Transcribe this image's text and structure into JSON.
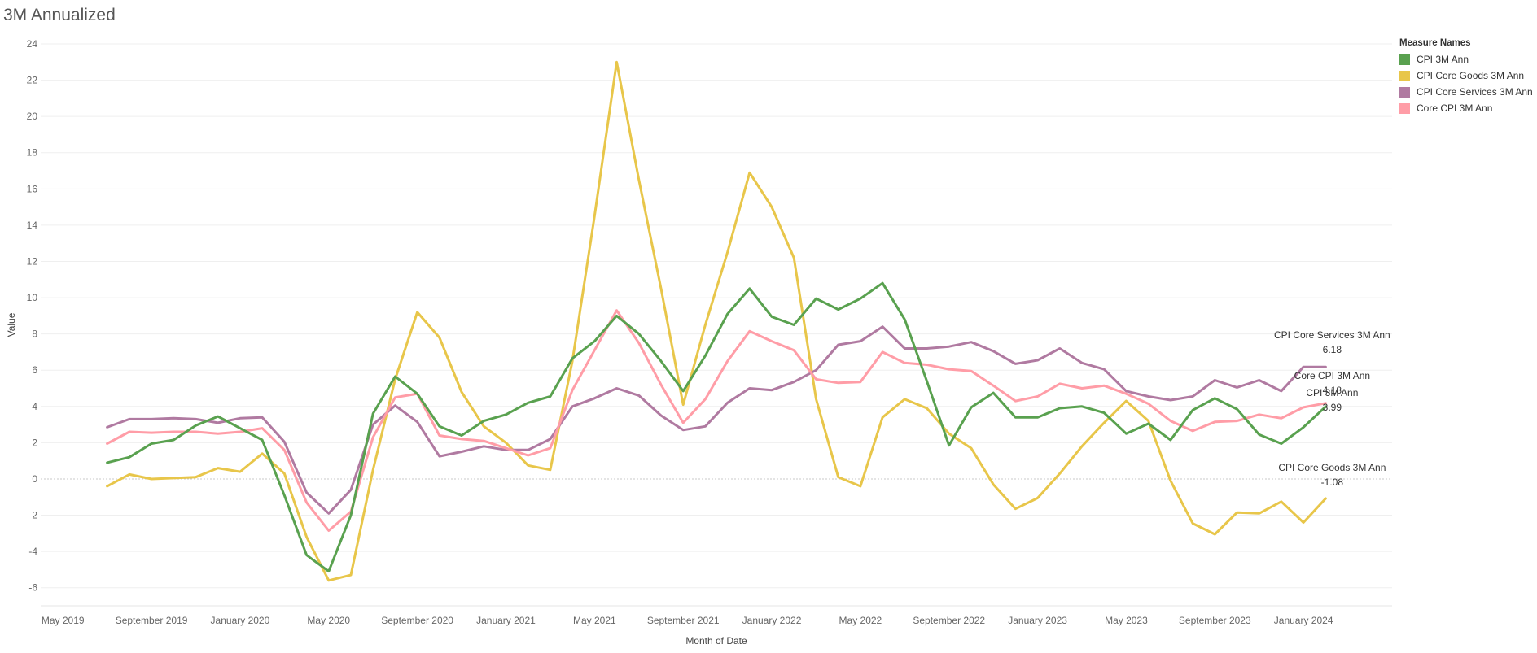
{
  "page": {
    "title": "3M Annualized"
  },
  "legend": {
    "title": "Measure Names"
  },
  "chart_data": {
    "type": "line",
    "title": "3M Annualized",
    "xlabel": "Month of Date",
    "ylabel": "Value",
    "ylim": [
      -7,
      24
    ],
    "yticks": [
      -6,
      -4,
      -2,
      0,
      2,
      4,
      6,
      8,
      10,
      12,
      14,
      16,
      18,
      20,
      22,
      24
    ],
    "x_range": [
      "2019-04",
      "2024-05"
    ],
    "x_ticks": [
      {
        "date": "2019-05",
        "label": "May 2019"
      },
      {
        "date": "2019-09",
        "label": "September 2019"
      },
      {
        "date": "2020-01",
        "label": "January 2020"
      },
      {
        "date": "2020-05",
        "label": "May 2020"
      },
      {
        "date": "2020-09",
        "label": "September 2020"
      },
      {
        "date": "2021-01",
        "label": "January 2021"
      },
      {
        "date": "2021-05",
        "label": "May 2021"
      },
      {
        "date": "2021-09",
        "label": "September 2021"
      },
      {
        "date": "2022-01",
        "label": "January 2022"
      },
      {
        "date": "2022-05",
        "label": "May 2022"
      },
      {
        "date": "2022-09",
        "label": "September 2022"
      },
      {
        "date": "2023-01",
        "label": "January 2023"
      },
      {
        "date": "2023-05",
        "label": "May 2023"
      },
      {
        "date": "2023-09",
        "label": "September 2023"
      },
      {
        "date": "2024-01",
        "label": "January 2024"
      }
    ],
    "grid": true,
    "zero_line": true,
    "legend_position": "right",
    "x": [
      "2019-07",
      "2019-08",
      "2019-09",
      "2019-10",
      "2019-11",
      "2019-12",
      "2020-01",
      "2020-02",
      "2020-03",
      "2020-04",
      "2020-05",
      "2020-06",
      "2020-07",
      "2020-08",
      "2020-09",
      "2020-10",
      "2020-11",
      "2020-12",
      "2021-01",
      "2021-02",
      "2021-03",
      "2021-04",
      "2021-05",
      "2021-06",
      "2021-07",
      "2021-08",
      "2021-09",
      "2021-10",
      "2021-11",
      "2021-12",
      "2022-01",
      "2022-02",
      "2022-03",
      "2022-04",
      "2022-05",
      "2022-06",
      "2022-07",
      "2022-08",
      "2022-09",
      "2022-10",
      "2022-11",
      "2022-12",
      "2023-01",
      "2023-02",
      "2023-03",
      "2023-04",
      "2023-05",
      "2023-06",
      "2023-07",
      "2023-08",
      "2023-09",
      "2023-10",
      "2023-11",
      "2023-12",
      "2024-01",
      "2024-02"
    ],
    "series": [
      {
        "name": "CPI Core Goods 3M Ann",
        "color": "#e8c64a",
        "values": [
          -0.4,
          0.25,
          0.0,
          0.05,
          0.1,
          0.6,
          0.4,
          1.4,
          0.3,
          -3.2,
          -5.6,
          -5.3,
          0.5,
          5.5,
          9.2,
          7.8,
          4.8,
          2.9,
          2.0,
          0.75,
          0.5,
          6.5,
          14.5,
          23.0,
          16.5,
          10.5,
          4.1,
          8.5,
          12.5,
          16.9,
          15.0,
          12.2,
          4.4,
          0.1,
          -0.4,
          3.4,
          4.4,
          3.9,
          2.5,
          1.7,
          -0.3,
          -1.65,
          -1.05,
          0.3,
          1.8,
          3.1,
          4.3,
          3.2,
          -0.1,
          -2.45,
          -3.05,
          -1.85,
          -1.9,
          -1.25,
          -2.4,
          -1.08
        ],
        "end_label": "CPI Core Goods 3M Ann",
        "end_value": "-1.08"
      },
      {
        "name": "CPI Core Services 3M Ann",
        "color": "#b07aa1",
        "values": [
          2.85,
          3.3,
          3.3,
          3.35,
          3.3,
          3.1,
          3.35,
          3.4,
          2.05,
          -0.75,
          -1.9,
          -0.6,
          3.0,
          4.05,
          3.15,
          1.25,
          1.5,
          1.8,
          1.6,
          1.6,
          2.2,
          4.0,
          4.45,
          5.0,
          4.6,
          3.5,
          2.7,
          2.9,
          4.2,
          5.0,
          4.9,
          5.35,
          6.0,
          7.4,
          7.6,
          8.4,
          7.2,
          7.2,
          7.3,
          7.55,
          7.05,
          6.35,
          6.55,
          7.2,
          6.4,
          6.05,
          4.85,
          4.55,
          4.35,
          4.55,
          5.45,
          5.05,
          5.45,
          4.85,
          6.18,
          6.18
        ],
        "end_label": "CPI Core Services 3M Ann",
        "end_value": "6.18"
      },
      {
        "name": "Core CPI 3M Ann",
        "color": "#ff9da7",
        "values": [
          1.95,
          2.6,
          2.55,
          2.6,
          2.6,
          2.5,
          2.6,
          2.8,
          1.6,
          -1.3,
          -2.85,
          -1.8,
          2.3,
          4.5,
          4.7,
          2.4,
          2.2,
          2.1,
          1.7,
          1.3,
          1.7,
          4.9,
          7.1,
          9.3,
          7.5,
          5.2,
          3.1,
          4.4,
          6.5,
          8.15,
          7.6,
          7.1,
          5.5,
          5.3,
          5.35,
          7.0,
          6.4,
          6.3,
          6.05,
          5.95,
          5.15,
          4.3,
          4.55,
          5.25,
          5.0,
          5.15,
          4.7,
          4.15,
          3.2,
          2.65,
          3.15,
          3.2,
          3.55,
          3.35,
          3.95,
          4.18
        ],
        "end_label": "Core CPI 3M Ann",
        "end_value": "4.18"
      },
      {
        "name": "CPI 3M Ann",
        "color": "#59a14f",
        "values": [
          0.9,
          1.2,
          1.95,
          2.15,
          2.95,
          3.45,
          2.8,
          2.15,
          -0.9,
          -4.2,
          -5.1,
          -2.0,
          3.6,
          5.65,
          4.7,
          2.9,
          2.4,
          3.2,
          3.55,
          4.2,
          4.55,
          6.65,
          7.6,
          9.0,
          8.0,
          6.5,
          4.85,
          6.8,
          9.1,
          10.5,
          8.95,
          8.5,
          9.95,
          9.35,
          9.95,
          10.8,
          8.8,
          5.4,
          1.85,
          3.95,
          4.75,
          3.4,
          3.4,
          3.9,
          4.0,
          3.65,
          2.5,
          3.05,
          2.15,
          3.8,
          4.45,
          3.85,
          2.45,
          1.95,
          2.85,
          3.99
        ],
        "end_label": "CPI 3M Ann",
        "end_value": "3.99"
      }
    ]
  }
}
